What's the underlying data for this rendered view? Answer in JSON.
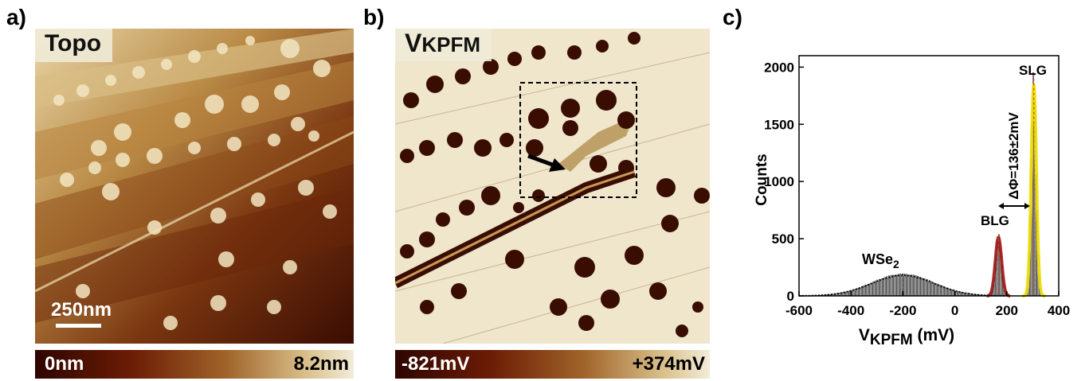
{
  "figure": {
    "panels": {
      "a": {
        "label": "a)",
        "title": "Topo",
        "scale_bar": "250nm",
        "colorbar_min": "0nm",
        "colorbar_max": "8.2nm"
      },
      "b": {
        "label": "b)",
        "title_main": "V",
        "title_sub": "KPFM",
        "colorbar_min": "-821mV",
        "colorbar_max": "+374mV"
      },
      "c": {
        "label": "c)",
        "annotations": {
          "wse2_main": "WSe",
          "wse2_sub": "2",
          "blg": "BLG",
          "slg": "SLG",
          "delta_phi": "ΔΦ=136±2mV"
        }
      }
    }
  },
  "chart_data": {
    "type": "bar",
    "xlabel_main": "V",
    "xlabel_sub": "KPFM",
    "xlabel_unit": " (mV)",
    "ylabel": "Counts",
    "xlim": [
      -600,
      400
    ],
    "ylim": [
      0,
      2100
    ],
    "x_ticks": [
      -600,
      -400,
      -200,
      0,
      200,
      400
    ],
    "x_tick_labels": [
      "-600",
      "-400",
      "-200",
      "0",
      "200",
      "400"
    ],
    "y_ticks": [
      0,
      500,
      1000,
      1500,
      2000
    ],
    "y_tick_labels": [
      "0",
      "500",
      "1000",
      "1500",
      "2000"
    ],
    "peaks": [
      {
        "label": "WSe2",
        "center": -200,
        "height": 180,
        "fit_color": "#000000"
      },
      {
        "label": "BLG",
        "center": 168,
        "height": 510,
        "fit_color": "#a01818"
      },
      {
        "label": "SLG",
        "center": 304,
        "height": 1850,
        "fit_color": "#f0e000"
      }
    ]
  }
}
